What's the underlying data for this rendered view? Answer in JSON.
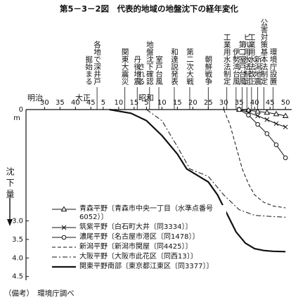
{
  "chart_data": {
    "type": "line",
    "title": "第5－3－2図　代表的地域の地盤沈下の経年変化",
    "y_label": "沈下量",
    "y_unit": "m",
    "eras": [
      "明治",
      "大正",
      "昭和"
    ],
    "xlim": [
      1891,
      1977
    ],
    "xticks": [
      {
        "value": 1897,
        "label": "30"
      },
      {
        "value": 1902,
        "label": "35"
      },
      {
        "value": 1907,
        "label": "40"
      },
      {
        "value": 1912,
        "label": "45"
      },
      {
        "value": 1916,
        "label": "5"
      },
      {
        "value": 1921,
        "label": "10"
      },
      {
        "value": 1926,
        "label": "15"
      },
      {
        "value": 1930,
        "label": "5"
      },
      {
        "value": 1935,
        "label": "10"
      },
      {
        "value": 1940,
        "label": "15"
      },
      {
        "value": 1945,
        "label": "20"
      },
      {
        "value": 1950,
        "label": "25"
      },
      {
        "value": 1955,
        "label": "30"
      },
      {
        "value": 1960,
        "label": "35"
      },
      {
        "value": 1965,
        "label": "40"
      },
      {
        "value": 1970,
        "label": "45"
      },
      {
        "value": 1975,
        "label": "50"
      }
    ],
    "ylim": [
      0,
      4.6
    ],
    "yticks": [
      0,
      {
        "value": 3,
        "label": "3.0"
      },
      3.5,
      {
        "value": 4,
        "label": "4.0"
      },
      4.5
    ],
    "inverted_y": true,
    "annotations": [
      {
        "text": [
          "各地で深井戸",
          "掘始まる"
        ],
        "x": 1914
      },
      {
        "text": [
          "関東大震災"
        ],
        "x": 1923
      },
      {
        "text": [
          "丹後地震"
        ],
        "x": 1927
      },
      {
        "text": [
          "地盤沈下確認",
          "される"
        ],
        "x": 1931
      },
      {
        "text": [
          "室戸台風"
        ],
        "x": 1934
      },
      {
        "text": [
          "和達説発表"
        ],
        "x": 1939
      },
      {
        "text": [
          "第二次大戦"
        ],
        "x": 1944
      },
      {
        "text": [
          "朝鮮戦争"
        ],
        "x": 1950
      },
      {
        "text": [
          "工業用水法制定"
        ],
        "x": 1956
      },
      {
        "text": [
          "伊勢湾台風"
        ],
        "x": 1959
      },
      {
        "text": [
          "第二室戸台風"
        ],
        "x": 1961
      },
      {
        "text": [
          "ビル用水法制定"
        ],
        "x": 1962.5
      },
      {
        "text": [
          "工業用水法改正"
        ],
        "x": 1964
      },
      {
        "text": [
          "新潟地震"
        ],
        "x": 1966
      },
      {
        "text": [
          "公害対策基本法制定"
        ],
        "x": 1968
      },
      {
        "text": [
          "環境庁設置"
        ],
        "x": 1971
      }
    ],
    "series": [
      {
        "name": "青森平野〔青森市中央一丁目（水準点番号6052）〕",
        "color": "#111111",
        "style": "solid",
        "marker": "triangle",
        "x": [
          1960,
          1963,
          1966,
          1969,
          1972,
          1975
        ],
        "values": [
          0,
          0.02,
          0.05,
          0.08,
          0.12,
          0.17
        ]
      },
      {
        "name": "筑紫平野〔白石町大井〔同3334〕〕",
        "color": "#111111",
        "style": "solid",
        "marker": "x",
        "x": [
          1960,
          1963,
          1966,
          1969,
          1972,
          1975
        ],
        "values": [
          0,
          0.08,
          0.17,
          0.27,
          0.38,
          0.47
        ]
      },
      {
        "name": "濃尾平野〔名古屋市港区〔同1478〕〕",
        "color": "#111111",
        "style": "solid",
        "marker": "circle",
        "x": [
          1960,
          1963,
          1966,
          1969,
          1972,
          1975
        ],
        "values": [
          0,
          0.15,
          0.4,
          0.65,
          0.95,
          1.3
        ]
      },
      {
        "name": "新潟平野〔新潟市関屋〔同4425〕〕",
        "color": "#111111",
        "style": "dashed",
        "x": [
          1955,
          1957,
          1959,
          1961,
          1963,
          1965,
          1968,
          1971,
          1975
        ],
        "values": [
          0,
          0.4,
          1.0,
          1.6,
          2.0,
          2.3,
          2.5,
          2.6,
          2.65
        ]
      },
      {
        "name": "大阪平野〔大阪市此花区〔同西13〕〕",
        "color": "#111111",
        "style": "dashdot",
        "x": [
          1930,
          1935,
          1940,
          1944,
          1947,
          1950,
          1955,
          1960,
          1965,
          1970,
          1975
        ],
        "values": [
          0,
          0.3,
          1.0,
          1.6,
          1.7,
          1.8,
          2.3,
          2.7,
          2.85,
          2.88,
          2.9
        ]
      },
      {
        "name": "関東平野南部〔東京都江東区〔同3377〕〕",
        "color": "#111111",
        "style": "thick",
        "x": [
          1918,
          1925,
          1930,
          1935,
          1940,
          1943,
          1947,
          1950,
          1953,
          1956,
          1959,
          1962,
          1965,
          1968,
          1971,
          1975
        ],
        "values": [
          0,
          0.1,
          0.3,
          0.7,
          1.2,
          1.6,
          1.8,
          1.95,
          2.3,
          2.8,
          3.3,
          3.6,
          3.75,
          3.8,
          3.82,
          3.83
        ]
      }
    ],
    "note": "（備考）　環境庁調べ"
  }
}
